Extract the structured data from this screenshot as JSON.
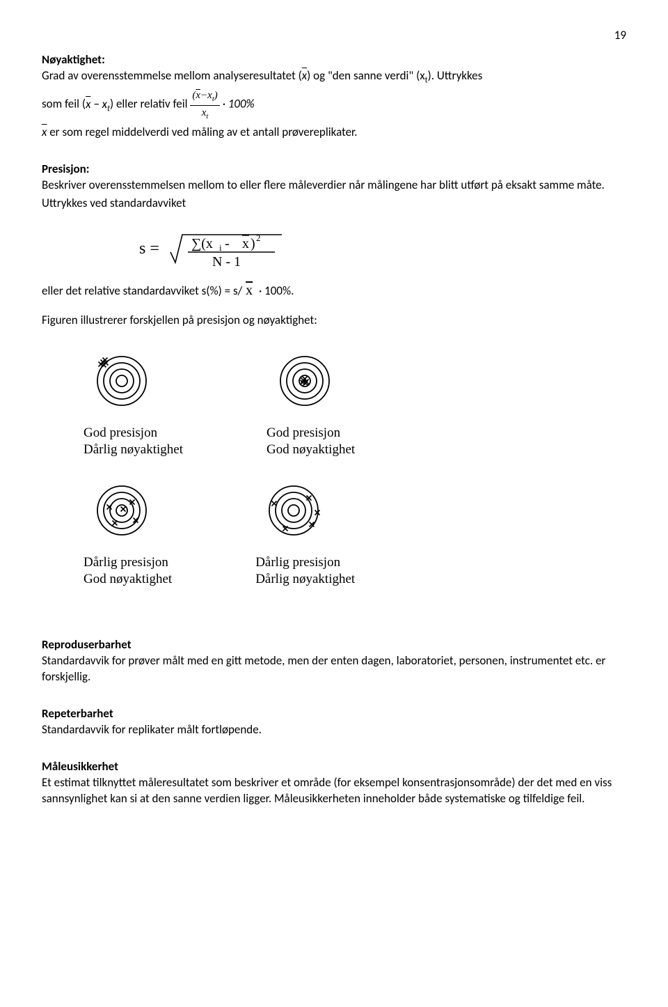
{
  "page_number": "19",
  "noyaktighet": {
    "title": "Nøyaktighet:",
    "line1_a": "Grad av overensstemmelse mellom analyseresultatet (",
    "line1_b": ") og \"den sanne verdi\" (x",
    "line1_c": "). Uttrykkes",
    "line2_a": "som feil (",
    "line2_b": ") eller relativ feil ",
    "line3_a": "  er som regel middelverdi ved måling av et antall prøvereplikater."
  },
  "presisjon": {
    "title": "Presisjon:",
    "p1": "Beskriver overensstemmelsen mellom to eller flere måleverdier når målingene har blitt utført på eksakt samme måte.",
    "p2": "Uttrykkes ved standardavviket",
    "rel_a": "eller det relative standardavviket s(%) = s/",
    "rel_b": " · 100%.",
    "figcap": "Figuren illustrerer forskjellen på presisjon og nøyaktighet:"
  },
  "targets": {
    "ring_color": "#000000",
    "mark_color": "#000000",
    "radii": [
      8,
      17,
      26,
      35
    ],
    "size": 90,
    "stroke_width": 1.8,
    "panels": [
      {
        "id": "tl",
        "cap1": "God presisjon",
        "cap2": "Dårlig nøyaktighet",
        "marks": [
          [
            -27,
            -27
          ],
          [
            -24,
            -30
          ],
          [
            -30,
            -24
          ],
          [
            -26,
            -23
          ],
          [
            -23,
            -26
          ]
        ]
      },
      {
        "id": "tr",
        "cap1": "God presisjon",
        "cap2": "God nøyaktighet",
        "marks": [
          [
            -2,
            -1
          ],
          [
            2,
            1
          ],
          [
            0,
            -3
          ],
          [
            -3,
            2
          ],
          [
            1,
            3
          ]
        ]
      },
      {
        "id": "bl",
        "cap1": "Dårlig presisjon",
        "cap2": "God nøyaktighet",
        "marks": [
          [
            -18,
            -5
          ],
          [
            15,
            -12
          ],
          [
            20,
            14
          ],
          [
            -10,
            18
          ],
          [
            2,
            -2
          ]
        ]
      },
      {
        "id": "br",
        "cap1": "Dårlig presisjon",
        "cap2": "Dårlig nøyaktighet",
        "marks": [
          [
            -28,
            -10
          ],
          [
            22,
            -18
          ],
          [
            26,
            20
          ],
          [
            -12,
            26
          ],
          [
            34,
            3
          ]
        ]
      }
    ]
  },
  "reproduserbarhet": {
    "title": "Reproduserbarhet",
    "text": "Standardavvik for prøver målt med en gitt metode, men der enten dagen, laboratoriet, personen, instrumentet etc. er forskjellig."
  },
  "repeterbarhet": {
    "title": "Repeterbarhet",
    "text": "Standardavvik for replikater målt fortløpende."
  },
  "maleusikkerhet": {
    "title": "Måleusikkerhet",
    "p1": "Et estimat tilknyttet måleresultatet som beskriver et område (for eksempel konsentrasjonsområde) der det med en viss sannsynlighet kan si at den sanne verdien ligger. Måleusikkerheten inneholder både systematiske og tilfeldige feil."
  }
}
